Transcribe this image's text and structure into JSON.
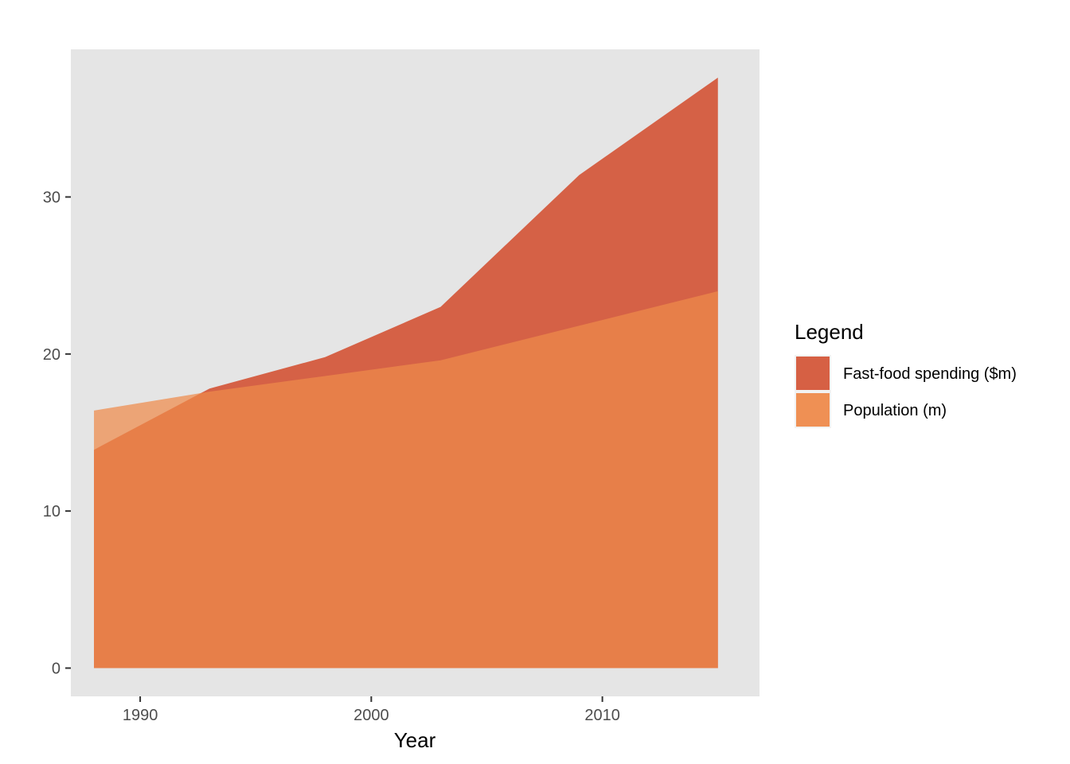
{
  "chart_data": {
    "type": "area",
    "title": "",
    "xlabel": "Year",
    "ylabel": "",
    "x": [
      1988,
      1993,
      1998,
      2003,
      2009,
      2015
    ],
    "series": [
      {
        "name": "Fast-food spending ($m)",
        "values": [
          13.9,
          17.8,
          19.8,
          23.0,
          31.4,
          37.6
        ],
        "color": "#d4573a"
      },
      {
        "name": "Population (m)",
        "values": [
          16.4,
          17.6,
          18.6,
          19.6,
          21.8,
          24.0
        ],
        "color": "#ee8a4b"
      }
    ],
    "xlim": [
      1987,
      2016.8
    ],
    "ylim": [
      -1.8,
      39.4
    ],
    "xticks": [
      1990,
      2000,
      2010
    ],
    "xtick_labels": [
      "1990",
      "2000",
      "2010"
    ],
    "yticks": [
      0,
      10,
      20,
      30
    ],
    "ytick_labels": [
      "0",
      "10",
      "20",
      "30"
    ],
    "panel_background": "#e5e5e5",
    "grid": false,
    "legend": {
      "title": "Legend",
      "placement": "right"
    }
  }
}
